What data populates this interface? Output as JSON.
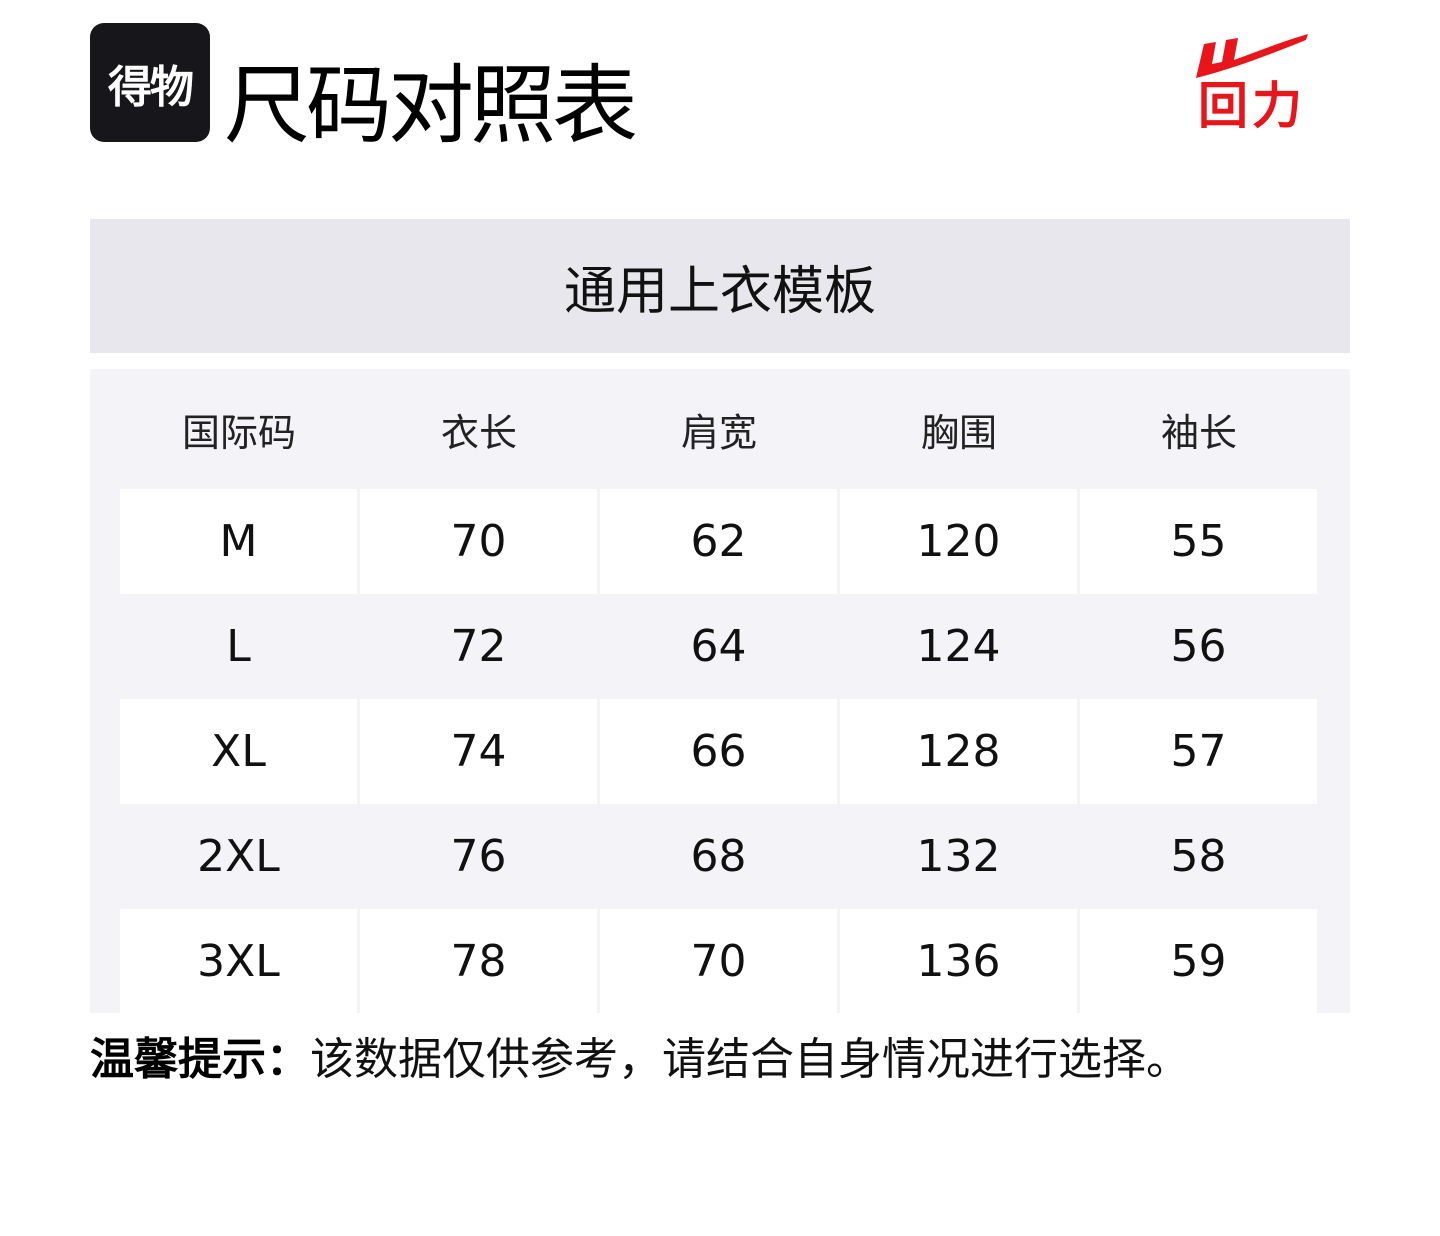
{
  "header": {
    "app_logo_text": "得物",
    "title": "尺码对照表",
    "brand_logo_text": "回力",
    "brand_color": "#e8161b"
  },
  "template_name": "通用上衣模板",
  "table": {
    "columns": [
      "国际码",
      "衣长",
      "肩宽",
      "胸围",
      "袖长"
    ],
    "rows": [
      [
        "M",
        "70",
        "62",
        "120",
        "55"
      ],
      [
        "L",
        "72",
        "64",
        "124",
        "56"
      ],
      [
        "XL",
        "74",
        "66",
        "128",
        "57"
      ],
      [
        "2XL",
        "76",
        "68",
        "132",
        "58"
      ],
      [
        "3XL",
        "78",
        "70",
        "136",
        "59"
      ]
    ]
  },
  "tip": {
    "label": "温馨提示：",
    "text": "该数据仅供参考，请结合自身情况进行选择。"
  }
}
